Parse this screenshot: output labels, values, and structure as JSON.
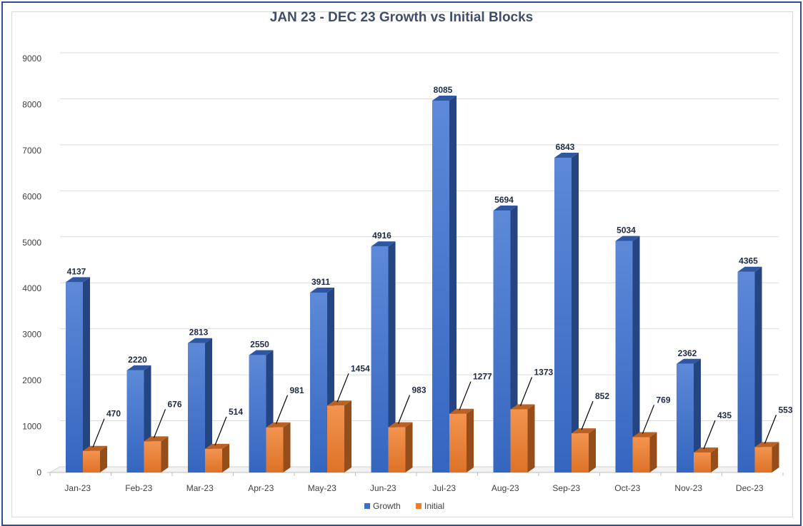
{
  "chart_data": {
    "type": "bar",
    "title": "JAN 23 - DEC 23 Growth vs Initial Blocks",
    "categories": [
      "Jan-23",
      "Feb-23",
      "Mar-23",
      "Apr-23",
      "May-23",
      "Jun-23",
      "Jul-23",
      "Aug-23",
      "Sep-23",
      "Oct-23",
      "Nov-23",
      "Dec-23"
    ],
    "series": [
      {
        "name": "Growth",
        "color": "#3a6fd0",
        "values": [
          4137,
          2220,
          2813,
          2550,
          3911,
          4916,
          8085,
          5694,
          6843,
          5034,
          2362,
          4365
        ]
      },
      {
        "name": "Initial",
        "color": "#f07c2a",
        "values": [
          470,
          676,
          514,
          981,
          1454,
          983,
          1277,
          1373,
          852,
          769,
          435,
          553
        ]
      }
    ],
    "yticks": [
      "0",
      "1000",
      "2000",
      "3000",
      "4000",
      "5000",
      "6000",
      "7000",
      "8000",
      "9000"
    ],
    "ylim": [
      0,
      9000
    ],
    "xlabel": "",
    "ylabel": "",
    "grid": true,
    "legend_position": "bottom",
    "style": "3d-columns"
  }
}
